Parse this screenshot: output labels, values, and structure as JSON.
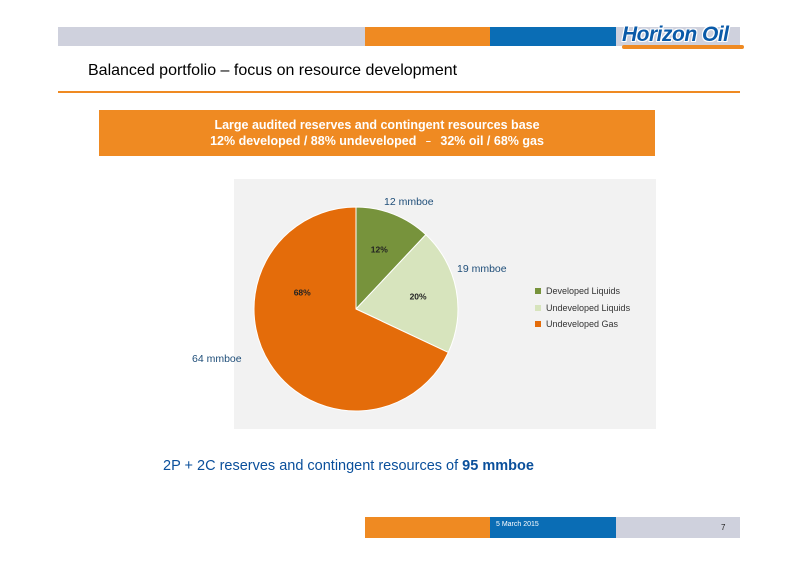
{
  "brand": {
    "logo_text": "Horizon Oil",
    "colors": {
      "orange": "#ef8a22",
      "blue": "#0a6db5",
      "grey": "#cfd1dd",
      "logo_blue": "#0a5aa8"
    }
  },
  "slide": {
    "title": "Balanced portfolio – focus on resource development",
    "banner": {
      "line1": "Large audited reserves and contingent  resources base",
      "line2_a": "12% developed  / 88% undeveloped",
      "separator": "–",
      "line2_b": "32% oil / 68% gas"
    },
    "summary_prefix": "2P + 2C reserves and contingent resources of ",
    "summary_value": "95 mmboe",
    "footer_date": "5 March 2015",
    "page_number": "7"
  },
  "chart_data": {
    "type": "pie",
    "categories": [
      "Developed Liquids",
      "Undeveloped Liquids",
      "Undeveloped Gas"
    ],
    "values": [
      12,
      20,
      68
    ],
    "value_labels": [
      "12%",
      "20%",
      "68%"
    ],
    "outside_labels": [
      "12 mmboe",
      "19 mmboe",
      "64 mmboe"
    ],
    "colors": [
      "#77933c",
      "#d7e4bd",
      "#e46c0a"
    ],
    "legend_position": "right"
  }
}
